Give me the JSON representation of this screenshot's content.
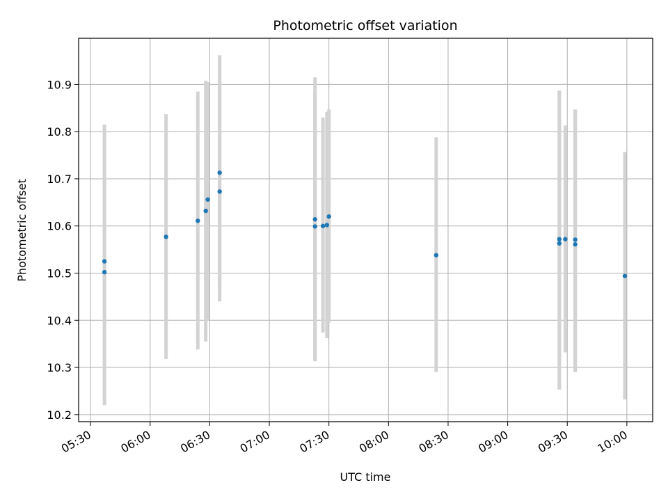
{
  "chart_data": {
    "type": "scatter",
    "title": "Photometric offset variation",
    "xlabel": "UTC time",
    "ylabel": "Photometric offset",
    "xlim": [
      "05:24",
      "10:13"
    ],
    "ylim": [
      10.185,
      10.998
    ],
    "x_ticks": [
      "05:30",
      "06:00",
      "06:30",
      "07:00",
      "07:30",
      "08:00",
      "08:30",
      "09:00",
      "09:30",
      "10:00"
    ],
    "y_ticks": [
      "10.2",
      "10.3",
      "10.4",
      "10.5",
      "10.6",
      "10.7",
      "10.8",
      "10.9"
    ],
    "grid": true,
    "colors": {
      "point": "#1f77b4",
      "error_bar": "#d3d3d3",
      "grid": "#b0b0b0"
    },
    "points": [
      {
        "time": "05:37",
        "y": 10.502,
        "yerr_low": 10.22,
        "yerr_high": 10.785
      },
      {
        "time": "05:37",
        "y": 10.525,
        "yerr_low": 10.235,
        "yerr_high": 10.815
      },
      {
        "time": "06:08",
        "y": 10.577,
        "yerr_low": 10.318,
        "yerr_high": 10.837
      },
      {
        "time": "06:24",
        "y": 10.611,
        "yerr_low": 10.338,
        "yerr_high": 10.885
      },
      {
        "time": "06:28",
        "y": 10.632,
        "yerr_low": 10.355,
        "yerr_high": 10.908
      },
      {
        "time": "06:29",
        "y": 10.656,
        "yerr_low": 10.4,
        "yerr_high": 10.905
      },
      {
        "time": "06:35",
        "y": 10.673,
        "yerr_low": 10.44,
        "yerr_high": 10.908
      },
      {
        "time": "06:35",
        "y": 10.713,
        "yerr_low": 10.466,
        "yerr_high": 10.962
      },
      {
        "time": "07:23",
        "y": 10.614,
        "yerr_low": 10.313,
        "yerr_high": 10.915
      },
      {
        "time": "07:23",
        "y": 10.599,
        "yerr_low": 10.315,
        "yerr_high": 10.883
      },
      {
        "time": "07:27",
        "y": 10.6,
        "yerr_low": 10.374,
        "yerr_high": 10.83
      },
      {
        "time": "07:29",
        "y": 10.602,
        "yerr_low": 10.362,
        "yerr_high": 10.842
      },
      {
        "time": "07:30",
        "y": 10.62,
        "yerr_low": 10.395,
        "yerr_high": 10.847
      },
      {
        "time": "08:24",
        "y": 10.538,
        "yerr_low": 10.29,
        "yerr_high": 10.788
      },
      {
        "time": "09:26",
        "y": 10.563,
        "yerr_low": 10.253,
        "yerr_high": 10.887
      },
      {
        "time": "09:26",
        "y": 10.572,
        "yerr_low": 10.26,
        "yerr_high": 10.887
      },
      {
        "time": "09:29",
        "y": 10.572,
        "yerr_low": 10.332,
        "yerr_high": 10.813
      },
      {
        "time": "09:34",
        "y": 10.571,
        "yerr_low": 10.296,
        "yerr_high": 10.847
      },
      {
        "time": "09:34",
        "y": 10.561,
        "yerr_low": 10.29,
        "yerr_high": 10.845
      },
      {
        "time": "09:59",
        "y": 10.494,
        "yerr_low": 10.232,
        "yerr_high": 10.757
      }
    ]
  }
}
